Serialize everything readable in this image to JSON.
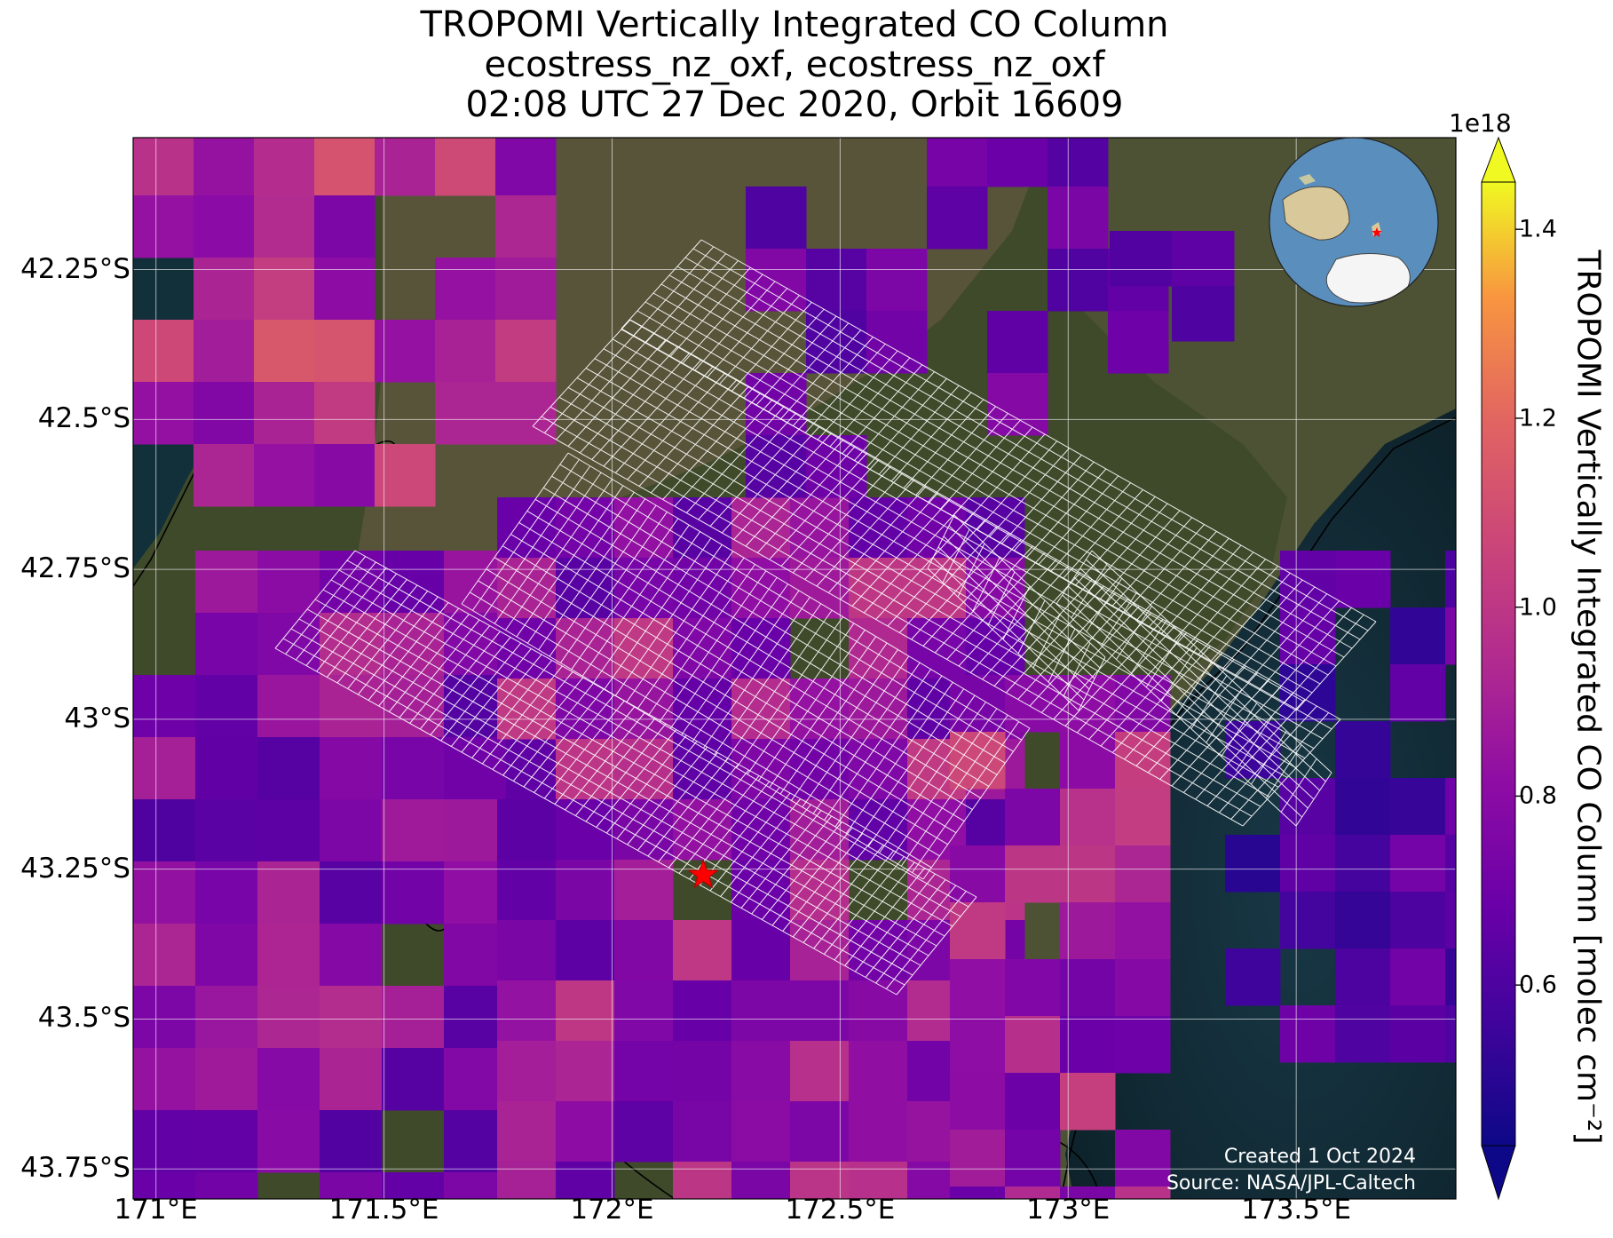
{
  "title_lines": [
    "TROPOMI Vertically Integrated CO Column",
    "ecostress_nz_oxf, ecostress_nz_oxf",
    "02:08 UTC 27 Dec 2020, Orbit 16609"
  ],
  "map": {
    "lon_range": [
      170.95,
      173.85
    ],
    "lat_range": [
      -43.8,
      -42.03
    ],
    "lat_ticks": [
      {
        "value": -42.25,
        "label": "42.25°S"
      },
      {
        "value": -42.5,
        "label": "42.5°S"
      },
      {
        "value": -42.75,
        "label": "42.75°S"
      },
      {
        "value": -43.0,
        "label": "43°S"
      },
      {
        "value": -43.25,
        "label": "43.25°S"
      },
      {
        "value": -43.5,
        "label": "43.5°S"
      },
      {
        "value": -43.75,
        "label": "43.75°S"
      }
    ],
    "lon_ticks": [
      {
        "value": 171.0,
        "label": "171°E"
      },
      {
        "value": 171.5,
        "label": "171.5°E"
      },
      {
        "value": 172.0,
        "label": "172°E"
      },
      {
        "value": 172.5,
        "label": "172.5°E"
      },
      {
        "value": 173.0,
        "label": "173°E"
      },
      {
        "value": 173.5,
        "label": "173.5°E"
      }
    ],
    "gridlines": true,
    "site_marker": {
      "lon": 172.2,
      "lat": -43.26,
      "symbol": "star",
      "color": "#ff0000"
    },
    "colors": {
      "land": "#3e4a2a",
      "mountains": "#6b5c45",
      "ocean": "#0f242c",
      "footprint": "#ffffff"
    }
  },
  "colorbar": {
    "min": 0.43,
    "max": 1.45,
    "exponent_label": "1e18",
    "ticks": [
      {
        "value": 0.6,
        "label": "0.6"
      },
      {
        "value": 0.8,
        "label": "0.8"
      },
      {
        "value": 1.0,
        "label": "1.0"
      },
      {
        "value": 1.2,
        "label": "1.2"
      },
      {
        "value": 1.4,
        "label": "1.4"
      }
    ],
    "label": "TROPOMI Vertically Integrated CO Column [molec cm⁻²]",
    "colormap": "plasma",
    "extend": "both"
  },
  "inset_globe": {
    "marker_color": "#ff0000"
  },
  "credits": {
    "created": "Created 1 Oct 2024",
    "source": "Source: NASA/JPL-Caltech"
  }
}
